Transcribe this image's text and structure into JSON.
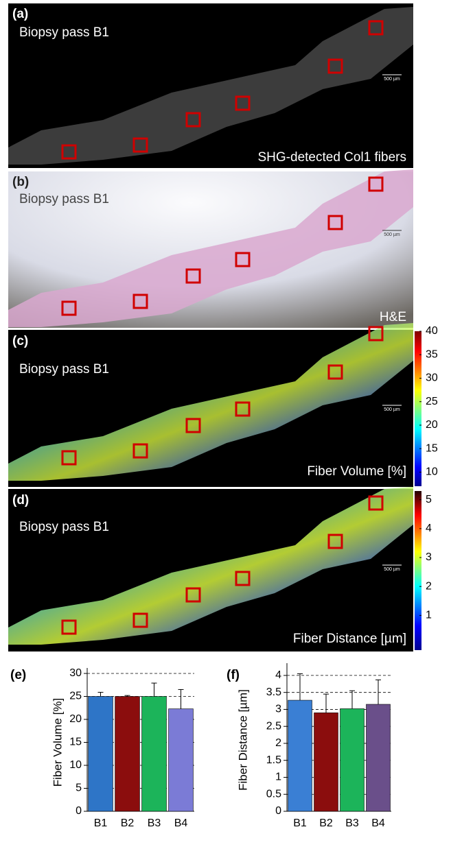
{
  "panels": [
    {
      "label": "(a)",
      "title": "Biopsy pass B1",
      "caption": "SHG-detected Col1 fibers",
      "scale": "500 µm"
    },
    {
      "label": "(b)",
      "title": "Biopsy pass B1",
      "caption": "H&E",
      "scale": "500 µm"
    },
    {
      "label": "(c)",
      "title": "Biopsy pass B1",
      "caption": "Fiber Volume [%]",
      "scale": "500 µm",
      "colorbar": {
        "lim": [
          7,
          40
        ],
        "ticks": [
          40,
          35,
          30,
          25,
          20,
          15,
          10
        ]
      }
    },
    {
      "label": "(d)",
      "title": "Biopsy pass B1",
      "caption": "Fiber Distance [µm]",
      "scale": "500 µm",
      "colorbar": {
        "lim": [
          -0.2,
          5.3
        ],
        "ticks": [
          5,
          4,
          3,
          2,
          1
        ]
      }
    }
  ],
  "chart_data": [
    {
      "type": "bar",
      "label": "(e)",
      "y_label": "Fiber Volume [%]",
      "categories": [
        "B1",
        "B2",
        "B3",
        "B4"
      ],
      "values": [
        25,
        25,
        25,
        22.3
      ],
      "errors": [
        0.9,
        0.2,
        2.9,
        4.2
      ],
      "colors": [
        "#2e75c7",
        "#8b0d0d",
        "#1cb45a",
        "#7b7bd6"
      ],
      "ylim": [
        0,
        30
      ],
      "yticks": [
        0,
        5,
        10,
        15,
        20,
        25,
        30
      ],
      "grid": true
    },
    {
      "type": "bar",
      "label": "(f)",
      "y_label": "Fiber Distance [µm]",
      "categories": [
        "B1",
        "B2",
        "B3",
        "B4"
      ],
      "values": [
        3.27,
        2.9,
        3.02,
        3.15
      ],
      "errors": [
        0.78,
        0.55,
        0.53,
        0.72
      ],
      "colors": [
        "#3a7fd4",
        "#8b0d0d",
        "#1cb45a",
        "#6a4f8a"
      ],
      "ylim": [
        0,
        4.2
      ],
      "yticks": [
        0,
        0.5,
        1,
        1.5,
        2,
        2.5,
        3,
        3.5,
        4
      ],
      "grid": true
    }
  ]
}
